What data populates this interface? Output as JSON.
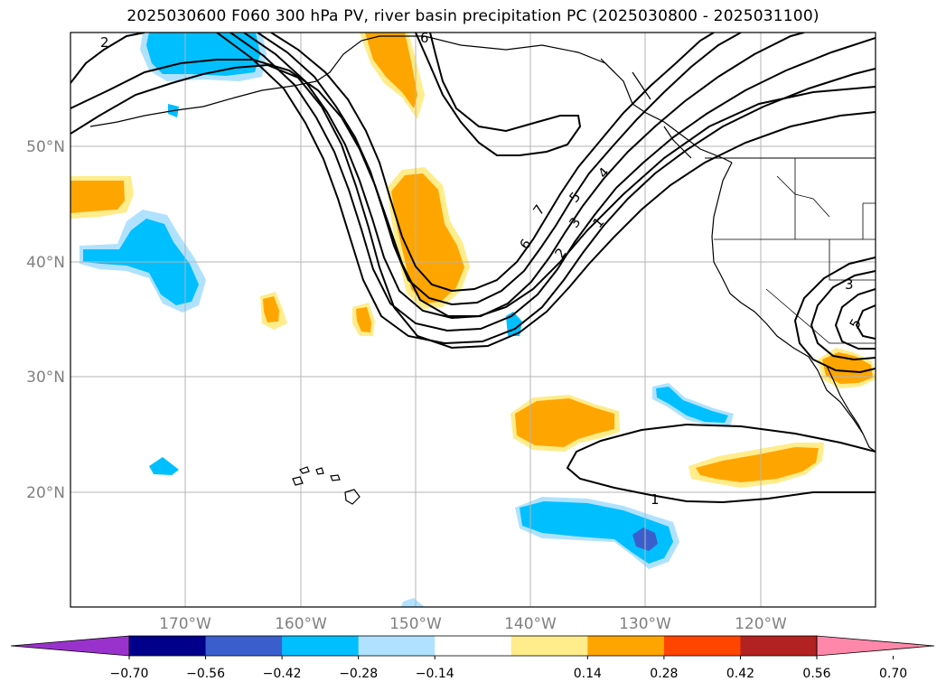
{
  "title": "2025030600 F060 300 hPa PV, river basin precipitation PC (2025030800 - 2025031100)",
  "map": {
    "lat_labels": [
      "50°N",
      "40°N",
      "30°N",
      "20°N"
    ],
    "lon_labels": [
      "170°W",
      "160°W",
      "150°W",
      "140°W",
      "130°W",
      "120°W"
    ],
    "contour_labels": [
      "2",
      "6",
      "7",
      "6",
      "5",
      "4",
      "3",
      "2",
      "1",
      "3",
      "5",
      "1"
    ]
  },
  "colorbar": {
    "ticks": [
      "−0.70",
      "−0.56",
      "−0.42",
      "−0.28",
      "−0.14",
      "0.14",
      "0.28",
      "0.42",
      "0.56",
      "0.70"
    ],
    "colors": [
      "#9932cc",
      "#00008b",
      "#3a5fcd",
      "#00bfff",
      "#b0e2ff",
      "#ffffff",
      "#ffec8b",
      "#ffa500",
      "#ff4500",
      "#b22222",
      "#ff88aa"
    ]
  }
}
